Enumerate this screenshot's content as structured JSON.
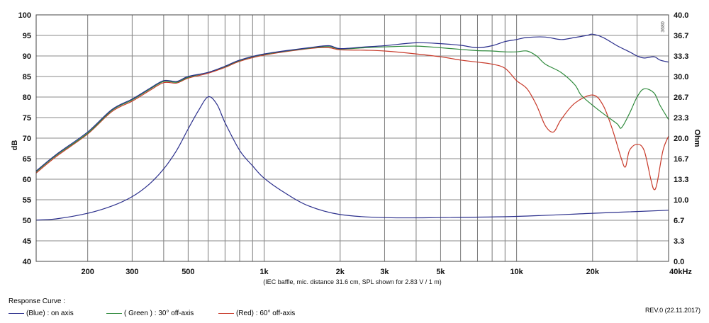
{
  "chart_data": {
    "type": "line",
    "x_scale": "log",
    "x_range_hz": [
      125,
      40000
    ],
    "x_tick_values": [
      200,
      300,
      500,
      1000,
      2000,
      3000,
      5000,
      10000,
      20000,
      40000
    ],
    "x_tick_labels": [
      "200",
      "300",
      "500",
      "1k",
      "2k",
      "3k",
      "5k",
      "10k",
      "20k",
      "40kHz"
    ],
    "y_left": {
      "label": "dB",
      "range": [
        40,
        100
      ],
      "ticks": [
        "40",
        "45",
        "50",
        "55",
        "60",
        "65",
        "70",
        "75",
        "80",
        "85",
        "90",
        "95",
        "100"
      ]
    },
    "y_right": {
      "label": "Ohm",
      "range": [
        0,
        40
      ],
      "ticks": [
        "0.0",
        "3.3",
        "6.7",
        "10.0",
        "13.3",
        "16.7",
        "20.0",
        "23.3",
        "26.7",
        "30.0",
        "33.3",
        "36.7",
        "40.0"
      ]
    },
    "grid": true,
    "annotation": "(IEC baffle, mic. distance 31.6 cm, SPL shown for 2.83 V / 1 m)",
    "chart_code": "3680",
    "series": [
      {
        "name": "(Blue) : on axis",
        "color": "#2b2f8c",
        "axis": "left",
        "points": [
          [
            125,
            62
          ],
          [
            150,
            66
          ],
          [
            200,
            71.5
          ],
          [
            250,
            77
          ],
          [
            300,
            79.5
          ],
          [
            350,
            82
          ],
          [
            400,
            84
          ],
          [
            450,
            83.8
          ],
          [
            500,
            85
          ],
          [
            600,
            86
          ],
          [
            700,
            87.5
          ],
          [
            800,
            89
          ],
          [
            1000,
            90.5
          ],
          [
            1500,
            92
          ],
          [
            1800,
            92.5
          ],
          [
            2000,
            91.8
          ],
          [
            2500,
            92.2
          ],
          [
            3000,
            92.5
          ],
          [
            4000,
            93.2
          ],
          [
            5000,
            93
          ],
          [
            6000,
            92.6
          ],
          [
            7000,
            92
          ],
          [
            8000,
            92.5
          ],
          [
            9000,
            93.5
          ],
          [
            10000,
            94
          ],
          [
            11000,
            94.5
          ],
          [
            13000,
            94.6
          ],
          [
            15000,
            94
          ],
          [
            17000,
            94.5
          ],
          [
            19000,
            95
          ],
          [
            20000,
            95.3
          ],
          [
            22000,
            94.5
          ],
          [
            25000,
            92.5
          ],
          [
            28000,
            91
          ],
          [
            30000,
            90
          ],
          [
            32000,
            89.5
          ],
          [
            35000,
            89.8
          ],
          [
            37000,
            89
          ],
          [
            40000,
            88.5
          ]
        ]
      },
      {
        "name": "( Green ) : 30° off-axis",
        "color": "#2f8a3c",
        "axis": "left",
        "points": [
          [
            125,
            61.8
          ],
          [
            150,
            65.8
          ],
          [
            200,
            71.2
          ],
          [
            250,
            76.8
          ],
          [
            300,
            79.3
          ],
          [
            350,
            81.8
          ],
          [
            400,
            83.8
          ],
          [
            450,
            83.6
          ],
          [
            500,
            84.8
          ],
          [
            600,
            86
          ],
          [
            700,
            87.4
          ],
          [
            800,
            88.9
          ],
          [
            1000,
            90.4
          ],
          [
            1500,
            91.9
          ],
          [
            1800,
            92.3
          ],
          [
            2000,
            91.7
          ],
          [
            2500,
            92
          ],
          [
            3000,
            92.2
          ],
          [
            4000,
            92.4
          ],
          [
            5000,
            92
          ],
          [
            6000,
            91.6
          ],
          [
            7000,
            91.3
          ],
          [
            8000,
            91.2
          ],
          [
            9000,
            91
          ],
          [
            10000,
            91
          ],
          [
            11000,
            91.2
          ],
          [
            12000,
            90
          ],
          [
            13000,
            88
          ],
          [
            15000,
            86
          ],
          [
            17000,
            83
          ],
          [
            18000,
            80.5
          ],
          [
            20000,
            78
          ],
          [
            22000,
            76
          ],
          [
            25000,
            73.5
          ],
          [
            26000,
            72.5
          ],
          [
            28000,
            76
          ],
          [
            30000,
            80
          ],
          [
            32000,
            82
          ],
          [
            35000,
            81
          ],
          [
            37000,
            78
          ],
          [
            40000,
            74.5
          ]
        ]
      },
      {
        "name": "(Red) : 60° off-axis",
        "color": "#c83a2a",
        "axis": "left",
        "points": [
          [
            125,
            61.5
          ],
          [
            150,
            65.5
          ],
          [
            200,
            71
          ],
          [
            250,
            76.5
          ],
          [
            300,
            79
          ],
          [
            350,
            81.5
          ],
          [
            400,
            83.5
          ],
          [
            450,
            83.4
          ],
          [
            500,
            84.6
          ],
          [
            600,
            85.8
          ],
          [
            700,
            87.2
          ],
          [
            800,
            88.7
          ],
          [
            1000,
            90.2
          ],
          [
            1500,
            91.8
          ],
          [
            1800,
            92
          ],
          [
            2000,
            91.5
          ],
          [
            2500,
            91.4
          ],
          [
            3000,
            91.2
          ],
          [
            4000,
            90.5
          ],
          [
            5000,
            89.8
          ],
          [
            6000,
            89
          ],
          [
            7000,
            88.5
          ],
          [
            8000,
            88
          ],
          [
            9000,
            87
          ],
          [
            10000,
            84
          ],
          [
            11000,
            82
          ],
          [
            12000,
            78
          ],
          [
            13000,
            73
          ],
          [
            14000,
            71.5
          ],
          [
            15000,
            74.5
          ],
          [
            17000,
            78.5
          ],
          [
            20000,
            80.5
          ],
          [
            22000,
            78
          ],
          [
            24000,
            72
          ],
          [
            26000,
            65
          ],
          [
            27000,
            63
          ],
          [
            28000,
            67
          ],
          [
            30000,
            68.5
          ],
          [
            32000,
            67
          ],
          [
            34000,
            60
          ],
          [
            35000,
            57.5
          ],
          [
            36000,
            59
          ],
          [
            38000,
            67
          ],
          [
            40000,
            70.5
          ]
        ]
      },
      {
        "name": "impedance",
        "color": "#2b2f8c",
        "axis": "right",
        "points": [
          [
            125,
            6.7
          ],
          [
            150,
            6.9
          ],
          [
            200,
            7.8
          ],
          [
            250,
            9
          ],
          [
            300,
            10.5
          ],
          [
            350,
            12.5
          ],
          [
            400,
            15
          ],
          [
            450,
            18
          ],
          [
            500,
            21.5
          ],
          [
            550,
            24.5
          ],
          [
            600,
            26.7
          ],
          [
            650,
            25.5
          ],
          [
            700,
            22.5
          ],
          [
            800,
            18
          ],
          [
            900,
            15.5
          ],
          [
            1000,
            13.5
          ],
          [
            1200,
            11.2
          ],
          [
            1500,
            9
          ],
          [
            2000,
            7.6
          ],
          [
            3000,
            7.1
          ],
          [
            5000,
            7.1
          ],
          [
            10000,
            7.3
          ],
          [
            20000,
            7.8
          ],
          [
            40000,
            8.3
          ]
        ]
      }
    ]
  },
  "legend": {
    "title": "Response Curve :",
    "items": [
      {
        "label": "(Blue)  : on axis",
        "color": "#2b2f8c"
      },
      {
        "label": "( Green ) : 30° off-axis",
        "color": "#2f8a3c"
      },
      {
        "label": "(Red) : 60° off-axis",
        "color": "#c83a2a"
      }
    ]
  },
  "revision": "REV.0 (22.11.2017)"
}
